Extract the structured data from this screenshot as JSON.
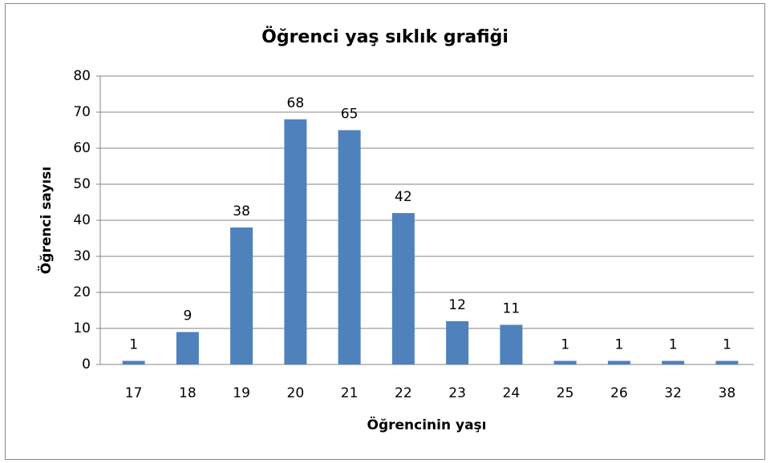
{
  "chart_data": {
    "type": "bar",
    "title": "Öğrenci yaş sıklık grafiği",
    "x_label": "Öğrencinin yaşı",
    "y_label": "Öğrenci sayısı",
    "categories": [
      "17",
      "18",
      "19",
      "20",
      "21",
      "22",
      "23",
      "24",
      "25",
      "26",
      "32",
      "38"
    ],
    "values": [
      1,
      9,
      38,
      68,
      65,
      42,
      12,
      11,
      1,
      1,
      1,
      1
    ],
    "color": "#4f81bd",
    "ylim": [
      0,
      80
    ],
    "yticks": [
      0,
      10,
      20,
      30,
      40,
      50,
      60,
      70,
      80
    ],
    "grid": true
  }
}
